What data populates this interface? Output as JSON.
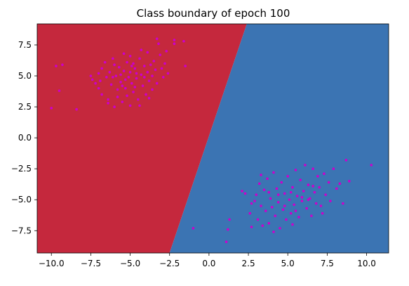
{
  "chart_data": {
    "type": "scatter",
    "title": "Class boundary of epoch 100",
    "xlabel": "",
    "ylabel": "",
    "xlim": [
      -10.9,
      11.4
    ],
    "ylim": [
      -9.3,
      9.2
    ],
    "xticks": [
      -10.0,
      -7.5,
      -5.0,
      -2.5,
      0.0,
      2.5,
      5.0,
      7.5,
      10.0
    ],
    "yticks": [
      7.5,
      5.0,
      2.5,
      0.0,
      -2.5,
      -5.0,
      -7.5
    ],
    "xtick_labels": [
      "−10.0",
      "−7.5",
      "−5.0",
      "−2.5",
      "0.0",
      "2.5",
      "5.0",
      "7.5",
      "10.0"
    ],
    "ytick_labels": [
      "7.5",
      "5.0",
      "2.5",
      "0.0",
      "−2.5",
      "−5.0",
      "−7.5"
    ],
    "grid": false,
    "background_regions": [
      {
        "class": "A",
        "color": "#c5283d",
        "side": "left"
      },
      {
        "class": "B",
        "color": "#3b74b3",
        "side": "right"
      }
    ],
    "decision_boundary": [
      [
        -2.5,
        -9.3
      ],
      [
        2.4,
        9.2
      ]
    ],
    "point_color": "#cc00cc",
    "series": [
      {
        "points": [
          [
            -9.7,
            5.8
          ],
          [
            -9.3,
            5.9
          ],
          [
            -9.5,
            3.8
          ],
          [
            -10.0,
            2.4
          ],
          [
            -8.4,
            2.3
          ],
          [
            -7.5,
            5.0
          ],
          [
            -7.4,
            4.7
          ],
          [
            -7.2,
            4.4
          ],
          [
            -7.0,
            5.2
          ],
          [
            -7.0,
            4.0
          ],
          [
            -6.8,
            5.6
          ],
          [
            -6.8,
            3.5
          ],
          [
            -6.6,
            6.1
          ],
          [
            -6.5,
            4.9
          ],
          [
            -6.4,
            3.1
          ],
          [
            -6.4,
            2.8
          ],
          [
            -6.3,
            5.3
          ],
          [
            -6.2,
            4.3
          ],
          [
            -6.1,
            6.4
          ],
          [
            -6.0,
            2.5
          ],
          [
            -5.9,
            5.0
          ],
          [
            -5.8,
            3.9
          ],
          [
            -5.7,
            5.7
          ],
          [
            -5.6,
            4.5
          ],
          [
            -5.5,
            2.9
          ],
          [
            -5.4,
            6.8
          ],
          [
            -5.4,
            5.4
          ],
          [
            -5.3,
            4.0
          ],
          [
            -5.2,
            3.4
          ],
          [
            -5.2,
            6.1
          ],
          [
            -5.1,
            4.9
          ],
          [
            -5.0,
            5.3
          ],
          [
            -5.0,
            2.6
          ],
          [
            -4.9,
            4.4
          ],
          [
            -4.8,
            6.0
          ],
          [
            -4.8,
            3.7
          ],
          [
            -4.7,
            5.6
          ],
          [
            -4.6,
            4.8
          ],
          [
            -4.5,
            3.1
          ],
          [
            -4.4,
            2.6
          ],
          [
            -4.4,
            6.4
          ],
          [
            -4.3,
            5.1
          ],
          [
            -4.2,
            4.2
          ],
          [
            -4.1,
            5.8
          ],
          [
            -4.0,
            3.5
          ],
          [
            -3.9,
            6.9
          ],
          [
            -3.9,
            5.3
          ],
          [
            -3.8,
            4.6
          ],
          [
            -3.7,
            5.9
          ],
          [
            -3.6,
            3.9
          ],
          [
            -3.5,
            6.2
          ],
          [
            -3.4,
            5.5
          ],
          [
            -3.3,
            8.0
          ],
          [
            -3.2,
            7.6
          ],
          [
            -3.1,
            6.7
          ],
          [
            -3.0,
            5.6
          ],
          [
            -2.9,
            4.9
          ],
          [
            -2.8,
            6.0
          ],
          [
            -2.7,
            7.0
          ],
          [
            -2.6,
            5.2
          ],
          [
            -2.2,
            7.9
          ],
          [
            -2.2,
            7.6
          ],
          [
            -1.6,
            7.8
          ],
          [
            -1.5,
            5.8
          ],
          [
            -6.1,
            4.9
          ],
          [
            -5.6,
            5.1
          ],
          [
            -5.3,
            4.7
          ],
          [
            -4.6,
            5.2
          ],
          [
            -4.1,
            4.9
          ],
          [
            -3.6,
            5.0
          ],
          [
            -6.9,
            4.6
          ],
          [
            -4.7,
            4.1
          ],
          [
            -5.8,
            3.3
          ],
          [
            -3.8,
            3.2
          ],
          [
            -5.0,
            6.6
          ],
          [
            -4.3,
            7.1
          ],
          [
            -6.0,
            5.9
          ],
          [
            -4.9,
            5.8
          ],
          [
            -3.3,
            4.4
          ],
          [
            -5.5,
            4.2
          ]
        ]
      },
      {
        "points": [
          [
            -1.0,
            -7.3
          ],
          [
            1.1,
            -8.4
          ],
          [
            1.2,
            -7.4
          ],
          [
            1.3,
            -6.6
          ],
          [
            2.1,
            -4.3
          ],
          [
            2.3,
            -4.5
          ],
          [
            2.6,
            -6.1
          ],
          [
            2.7,
            -7.2
          ],
          [
            2.9,
            -5.1
          ],
          [
            3.0,
            -4.6
          ],
          [
            3.1,
            -6.6
          ],
          [
            3.2,
            -3.7
          ],
          [
            3.3,
            -5.5
          ],
          [
            3.4,
            -7.1
          ],
          [
            3.5,
            -4.2
          ],
          [
            3.6,
            -5.9
          ],
          [
            3.7,
            -3.3
          ],
          [
            3.8,
            -6.9
          ],
          [
            3.9,
            -4.9
          ],
          [
            4.0,
            -5.6
          ],
          [
            4.1,
            -2.8
          ],
          [
            4.2,
            -6.3
          ],
          [
            4.3,
            -4.1
          ],
          [
            4.4,
            -5.2
          ],
          [
            4.5,
            -7.3
          ],
          [
            4.6,
            -3.6
          ],
          [
            4.7,
            -5.8
          ],
          [
            4.8,
            -4.5
          ],
          [
            4.9,
            -6.6
          ],
          [
            5.0,
            -3.1
          ],
          [
            5.1,
            -5.0
          ],
          [
            5.2,
            -6.1
          ],
          [
            5.3,
            -4.0
          ],
          [
            5.4,
            -5.4
          ],
          [
            5.5,
            -2.6
          ],
          [
            5.6,
            -4.7
          ],
          [
            5.7,
            -6.4
          ],
          [
            5.8,
            -3.4
          ],
          [
            5.9,
            -5.1
          ],
          [
            6.0,
            -4.3
          ],
          [
            6.1,
            -2.2
          ],
          [
            6.2,
            -5.7
          ],
          [
            6.3,
            -3.8
          ],
          [
            6.4,
            -4.9
          ],
          [
            6.5,
            -6.3
          ],
          [
            6.6,
            -2.5
          ],
          [
            6.7,
            -4.4
          ],
          [
            6.8,
            -5.3
          ],
          [
            6.9,
            -3.1
          ],
          [
            7.0,
            -4.0
          ],
          [
            7.1,
            -5.5
          ],
          [
            7.3,
            -2.9
          ],
          [
            7.4,
            -4.6
          ],
          [
            7.6,
            -3.6
          ],
          [
            7.7,
            -5.1
          ],
          [
            7.9,
            -2.5
          ],
          [
            8.1,
            -4.1
          ],
          [
            8.3,
            -3.7
          ],
          [
            8.5,
            -5.3
          ],
          [
            8.7,
            -1.8
          ],
          [
            8.9,
            -3.5
          ],
          [
            10.3,
            -2.2
          ],
          [
            4.4,
            -4.6
          ],
          [
            5.2,
            -4.4
          ],
          [
            5.9,
            -4.8
          ],
          [
            6.6,
            -3.9
          ],
          [
            4.8,
            -5.5
          ],
          [
            5.5,
            -5.9
          ],
          [
            3.8,
            -4.4
          ],
          [
            6.3,
            -5.0
          ],
          [
            4.1,
            -7.6
          ],
          [
            5.3,
            -7.0
          ],
          [
            2.7,
            -5.3
          ],
          [
            7.2,
            -6.1
          ],
          [
            3.3,
            -3.0
          ]
        ]
      }
    ]
  }
}
